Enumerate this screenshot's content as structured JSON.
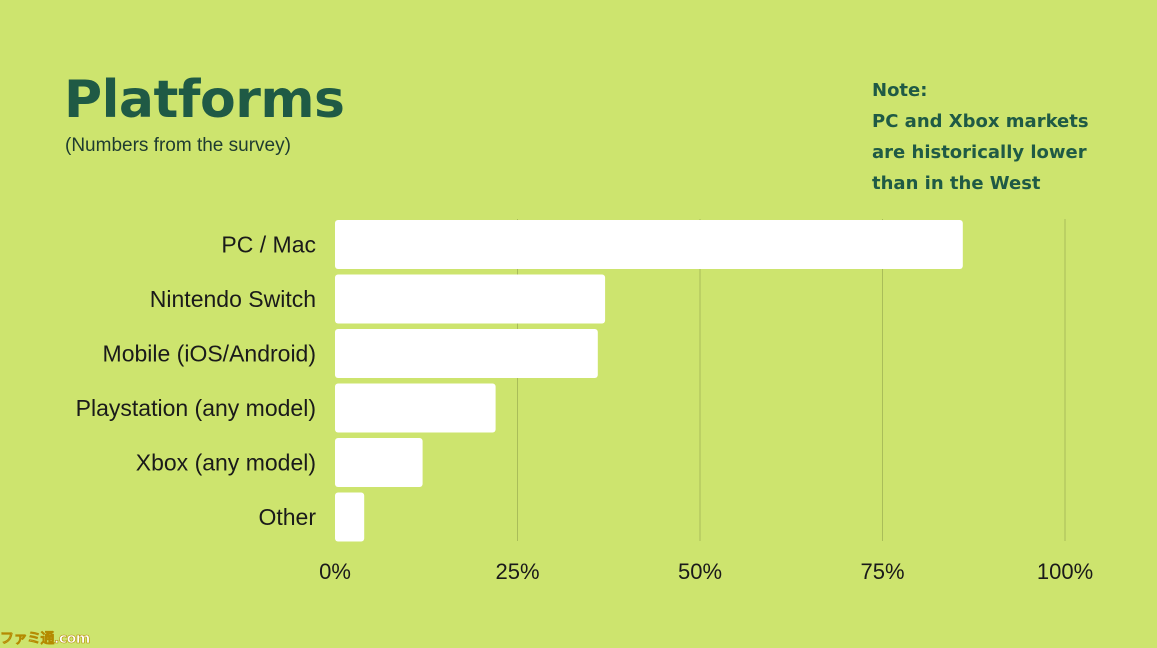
{
  "title": "Platforms",
  "subtitle": "(Numbers from the survey)",
  "note": {
    "lines": [
      "Note:",
      "PC and Xbox markets",
      "are historically lower",
      "than in the West"
    ]
  },
  "watermark": "ファミ通.com",
  "colors": {
    "background": "#cde46e",
    "bar": "#ffffff",
    "title": "#1f5a45",
    "grid": "#a9bd59"
  },
  "chart_data": {
    "type": "bar",
    "orientation": "horizontal",
    "categories": [
      "PC / Mac",
      "Nintendo Switch",
      "Mobile (iOS/Android)",
      "Playstation (any model)",
      "Xbox (any model)",
      "Other"
    ],
    "values": [
      86,
      37,
      36,
      22,
      12,
      4
    ],
    "xlim": [
      0,
      100
    ],
    "xticks": [
      0,
      25,
      50,
      75,
      100
    ],
    "xtick_labels": [
      "0%",
      "25%",
      "50%",
      "75%",
      "100%"
    ],
    "grid": true
  }
}
